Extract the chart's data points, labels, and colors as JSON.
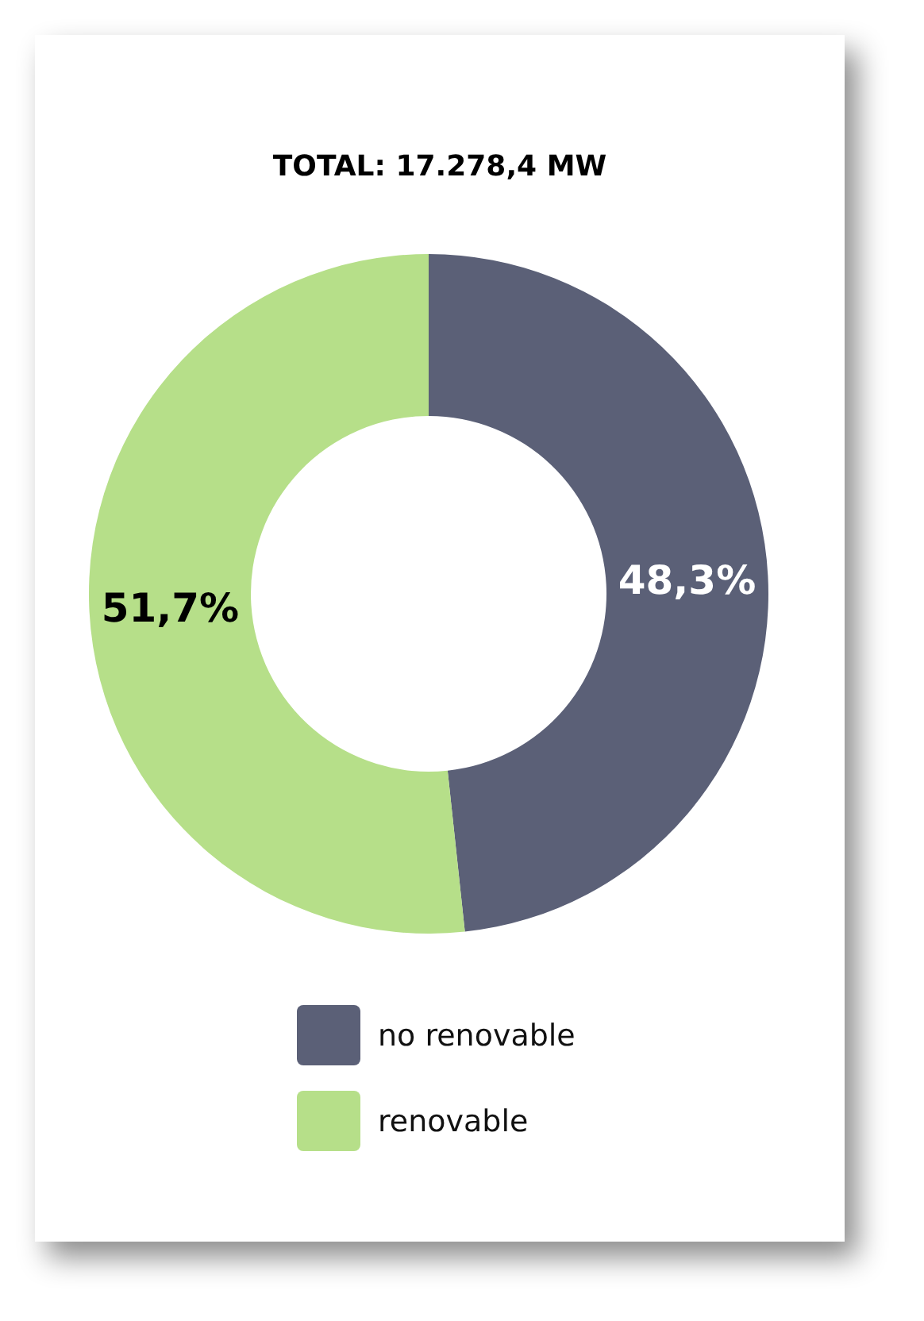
{
  "chart_data": {
    "type": "donut",
    "title": "TOTAL: 17.278,4 MW",
    "categories": [
      "no renovable",
      "renovable"
    ],
    "values": [
      48.3,
      51.7
    ],
    "colors": [
      "#5b6077",
      "#b6df89"
    ],
    "value_labels": [
      "48,3%",
      "51,7%"
    ],
    "legend": "bottom"
  }
}
